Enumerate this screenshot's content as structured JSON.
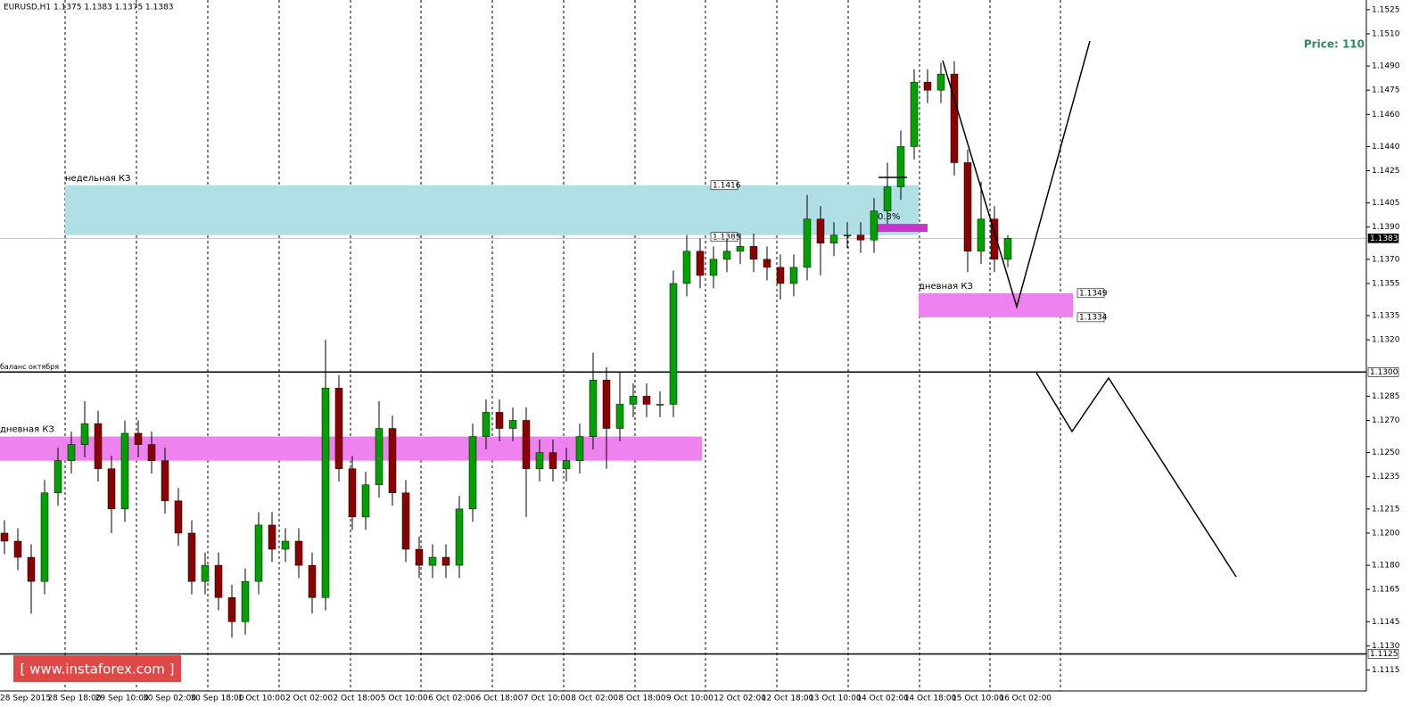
{
  "chart_data": {
    "type": "candlestick",
    "title": "EURUSD,H1  1.1375 1.1383 1.1375 1.1383",
    "annotation": "Price: 110",
    "ylim": [
      1.1102,
      1.1531
    ],
    "yticks": [
      {
        "value": 1.1525,
        "label": "1.1525"
      },
      {
        "value": 1.151,
        "label": "1.1510"
      },
      {
        "value": 1.149,
        "label": "1.1490"
      },
      {
        "value": 1.1475,
        "label": "1.1475"
      },
      {
        "value": 1.146,
        "label": "1.1460"
      },
      {
        "value": 1.144,
        "label": "1.1440"
      },
      {
        "value": 1.1425,
        "label": "1.1425"
      },
      {
        "value": 1.1405,
        "label": "1.1405"
      },
      {
        "value": 1.139,
        "label": "1.1390"
      },
      {
        "value": 1.137,
        "label": "1.1370"
      },
      {
        "value": 1.1355,
        "label": "1.1355"
      },
      {
        "value": 1.1335,
        "label": "1.1335"
      },
      {
        "value": 1.132,
        "label": "1.1320"
      },
      {
        "value": 1.1285,
        "label": "1.1285"
      },
      {
        "value": 1.127,
        "label": "1.1270"
      },
      {
        "value": 1.125,
        "label": "1.1250"
      },
      {
        "value": 1.1235,
        "label": "1.1235"
      },
      {
        "value": 1.1215,
        "label": "1.1215"
      },
      {
        "value": 1.12,
        "label": "1.1200"
      },
      {
        "value": 1.118,
        "label": "1.1180"
      },
      {
        "value": 1.1165,
        "label": "1.1165"
      },
      {
        "value": 1.1145,
        "label": "1.1145"
      },
      {
        "value": 1.113,
        "label": "1.1130"
      },
      {
        "value": 1.1115,
        "label": "1.1115"
      }
    ],
    "xlabels": [
      "28 Sep 2015",
      "28 Sep 18:00",
      "29 Sep 10:00",
      "30 Sep 02:00",
      "30 Sep 18:00",
      "1 Oct 10:00",
      "2 Oct 02:00",
      "2 Oct 18:00",
      "5 Oct 10:00",
      "6 Oct 02:00",
      "6 Oct 18:00",
      "7 Oct 10:00",
      "8 Oct 02:00",
      "8 Oct 18:00",
      "9 Oct 10:00",
      "12 Oct 02:00",
      "12 Oct 18:00",
      "13 Oct 10:00",
      "14 Oct 02:00",
      "14 Oct 18:00",
      "15 Oct 10:00",
      "16 Oct 02:00"
    ],
    "up_color": "#00a000",
    "down_color": "#8b0000",
    "ohlc": [
      [
        1.12,
        1.1208,
        1.1187,
        1.1195
      ],
      [
        1.1195,
        1.1203,
        1.1177,
        1.1185
      ],
      [
        1.1185,
        1.1193,
        1.115,
        1.117
      ],
      [
        1.117,
        1.1233,
        1.1162,
        1.1225
      ],
      [
        1.1225,
        1.1253,
        1.1217,
        1.1245
      ],
      [
        1.1245,
        1.1263,
        1.1237,
        1.1255
      ],
      [
        1.1255,
        1.1282,
        1.1247,
        1.1268
      ],
      [
        1.1268,
        1.1276,
        1.1232,
        1.124
      ],
      [
        1.124,
        1.1248,
        1.12,
        1.1215
      ],
      [
        1.1215,
        1.127,
        1.1207,
        1.1262
      ],
      [
        1.1262,
        1.127,
        1.1247,
        1.1255
      ],
      [
        1.1255,
        1.1263,
        1.1237,
        1.1245
      ],
      [
        1.1245,
        1.1253,
        1.1212,
        1.122
      ],
      [
        1.122,
        1.1228,
        1.1192,
        1.12
      ],
      [
        1.12,
        1.1208,
        1.1162,
        1.117
      ],
      [
        1.117,
        1.1188,
        1.1162,
        1.118
      ],
      [
        1.118,
        1.1188,
        1.1152,
        1.116
      ],
      [
        1.116,
        1.1168,
        1.1135,
        1.1145
      ],
      [
        1.1145,
        1.1178,
        1.1137,
        1.117
      ],
      [
        1.117,
        1.1213,
        1.1162,
        1.1205
      ],
      [
        1.1205,
        1.1213,
        1.1182,
        1.119
      ],
      [
        1.119,
        1.1203,
        1.1182,
        1.1195
      ],
      [
        1.1195,
        1.1203,
        1.1172,
        1.118
      ],
      [
        1.118,
        1.1188,
        1.115,
        1.116
      ],
      [
        1.116,
        1.132,
        1.1152,
        1.129
      ],
      [
        1.129,
        1.1298,
        1.1232,
        1.124
      ],
      [
        1.124,
        1.1248,
        1.1202,
        1.121
      ],
      [
        1.121,
        1.1238,
        1.1202,
        1.123
      ],
      [
        1.123,
        1.1282,
        1.1222,
        1.1265
      ],
      [
        1.1265,
        1.1273,
        1.1217,
        1.1225
      ],
      [
        1.1225,
        1.1233,
        1.1182,
        1.119
      ],
      [
        1.119,
        1.1198,
        1.1172,
        1.118
      ],
      [
        1.118,
        1.1193,
        1.1172,
        1.1185
      ],
      [
        1.1185,
        1.1193,
        1.1172,
        1.118
      ],
      [
        1.118,
        1.1223,
        1.1172,
        1.1215
      ],
      [
        1.1215,
        1.1268,
        1.1207,
        1.126
      ],
      [
        1.126,
        1.1283,
        1.1252,
        1.1275
      ],
      [
        1.1275,
        1.1283,
        1.1257,
        1.1265
      ],
      [
        1.1265,
        1.1278,
        1.1257,
        1.127
      ],
      [
        1.127,
        1.1278,
        1.121,
        1.124
      ],
      [
        1.124,
        1.1258,
        1.1232,
        1.125
      ],
      [
        1.125,
        1.1258,
        1.1232,
        1.124
      ],
      [
        1.124,
        1.1253,
        1.1232,
        1.1245
      ],
      [
        1.1245,
        1.1268,
        1.1237,
        1.126
      ],
      [
        1.126,
        1.1312,
        1.1252,
        1.1295
      ],
      [
        1.1295,
        1.1303,
        1.124,
        1.1265
      ],
      [
        1.1265,
        1.13,
        1.1257,
        1.128
      ],
      [
        1.128,
        1.1293,
        1.1272,
        1.1285
      ],
      [
        1.1285,
        1.1293,
        1.1272,
        1.128
      ],
      [
        1.128,
        1.1288,
        1.1272,
        1.128
      ],
      [
        1.128,
        1.1363,
        1.1272,
        1.1355
      ],
      [
        1.1355,
        1.1385,
        1.1347,
        1.1375
      ],
      [
        1.1375,
        1.1383,
        1.1352,
        1.136
      ],
      [
        1.136,
        1.1378,
        1.1352,
        1.137
      ],
      [
        1.137,
        1.1383,
        1.1362,
        1.1375
      ],
      [
        1.1375,
        1.1386,
        1.1367,
        1.1378
      ],
      [
        1.1378,
        1.1386,
        1.1362,
        1.137
      ],
      [
        1.137,
        1.1378,
        1.1357,
        1.1365
      ],
      [
        1.1365,
        1.1373,
        1.1345,
        1.1355
      ],
      [
        1.1355,
        1.1373,
        1.1347,
        1.1365
      ],
      [
        1.1365,
        1.141,
        1.1357,
        1.1395
      ],
      [
        1.1395,
        1.1403,
        1.136,
        1.138
      ],
      [
        1.138,
        1.1393,
        1.1372,
        1.1385
      ],
      [
        1.1385,
        1.1393,
        1.1377,
        1.1385
      ],
      [
        1.1385,
        1.1393,
        1.1374,
        1.1382
      ],
      [
        1.1382,
        1.1408,
        1.1374,
        1.14
      ],
      [
        1.14,
        1.143,
        1.1392,
        1.1415
      ],
      [
        1.1415,
        1.145,
        1.1407,
        1.144
      ],
      [
        1.144,
        1.1488,
        1.1432,
        1.148
      ],
      [
        1.148,
        1.1488,
        1.1467,
        1.1475
      ],
      [
        1.1475,
        1.1492,
        1.1467,
        1.1485
      ],
      [
        1.1485,
        1.1493,
        1.1422,
        1.143
      ],
      [
        1.143,
        1.1438,
        1.1362,
        1.1375
      ],
      [
        1.1375,
        1.1418,
        1.1367,
        1.1395
      ],
      [
        1.1395,
        1.1403,
        1.1362,
        1.137
      ],
      [
        1.137,
        1.1385,
        1.1365,
        1.1383
      ]
    ],
    "zones": [
      {
        "label": "недельная КЗ",
        "top": 1.1416,
        "bottom": 1.1385,
        "color": "#b0e0e6"
      },
      {
        "label": "дневная КЗ",
        "top": 1.126,
        "bottom": 1.1245,
        "color": "#ee82ee"
      },
      {
        "label": "дневная КЗ",
        "top": 1.1349,
        "bottom": 1.1334,
        "color": "#ee82ee"
      },
      {
        "label": "0.3%",
        "top": 1.1392,
        "bottom": 1.1387,
        "color": "#cc33cc"
      }
    ],
    "levels": [
      {
        "value": 1.1383,
        "label": "1.1383",
        "color": "#c0c0c0"
      },
      {
        "value": 1.13,
        "label": "1.1300",
        "name": "баланс октября",
        "color": "#000000"
      },
      {
        "value": 1.1125,
        "label": "1.1125",
        "color": "#000000"
      }
    ],
    "watermark": "[ www.instaforex.com ]"
  }
}
